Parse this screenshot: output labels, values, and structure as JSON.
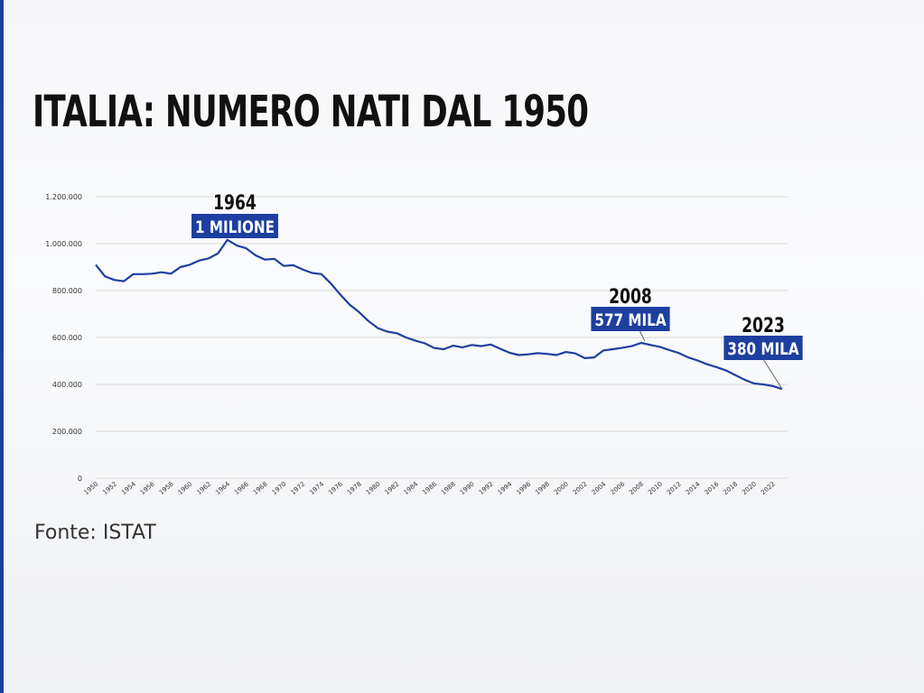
{
  "slide": {
    "title": "ITALIA: NUMERO NATI DAL 1950",
    "source": "Fonte: ISTAT"
  },
  "colors": {
    "line": "#1d3fa0",
    "label_box": "#1d3fa0",
    "accent_bar": "#1c3f9e"
  },
  "chart_data": {
    "type": "line",
    "title": "",
    "xlabel": "",
    "ylabel": "",
    "ylim": [
      0,
      1200000
    ],
    "grid": true,
    "y_ticks": [
      {
        "value": 0,
        "label": "0"
      },
      {
        "value": 200000,
        "label": "200.000"
      },
      {
        "value": 400000,
        "label": "400.000"
      },
      {
        "value": 600000,
        "label": "600.000"
      },
      {
        "value": 800000,
        "label": "800.000"
      },
      {
        "value": 1000000,
        "label": "1.000.000"
      },
      {
        "value": 1200000,
        "label": "1.200.000"
      }
    ],
    "x_tick_labels": [
      "1950",
      "1952",
      "1954",
      "1956",
      "1958",
      "1960",
      "1962",
      "1964",
      "1966",
      "1968",
      "1970",
      "1972",
      "1974",
      "1976",
      "1978",
      "1980",
      "1982",
      "1984",
      "1986",
      "1988",
      "1990",
      "1992",
      "1994",
      "1996",
      "1998",
      "2000",
      "2002",
      "2004",
      "2006",
      "2008",
      "2010",
      "2012",
      "2014",
      "2016",
      "2018",
      "2020",
      "2022"
    ],
    "series": [
      {
        "x": [
          1950,
          1951,
          1952,
          1953,
          1954,
          1955,
          1956,
          1957,
          1958,
          1959,
          1960,
          1961,
          1962,
          1963,
          1964,
          1965,
          1966,
          1967,
          1968,
          1969,
          1970,
          1971,
          1972,
          1973,
          1974,
          1975,
          1976,
          1977,
          1978,
          1979,
          1980,
          1981,
          1982,
          1983,
          1984,
          1985,
          1986,
          1987,
          1988,
          1989,
          1990,
          1991,
          1992,
          1993,
          1994,
          1995,
          1996,
          1997,
          1998,
          1999,
          2000,
          2001,
          2002,
          2003,
          2004,
          2005,
          2006,
          2007,
          2008,
          2009,
          2010,
          2011,
          2012,
          2013,
          2014,
          2015,
          2016,
          2017,
          2018,
          2019,
          2020,
          2021,
          2022,
          2023
        ],
        "values": [
          910000,
          860000,
          845000,
          840000,
          870000,
          870000,
          872000,
          878000,
          872000,
          900000,
          910000,
          928000,
          937000,
          958000,
          1016000,
          992000,
          980000,
          950000,
          932000,
          935000,
          905000,
          908000,
          890000,
          875000,
          870000,
          830000,
          783000,
          740000,
          708000,
          670000,
          640000,
          625000,
          618000,
          600000,
          586000,
          575000,
          555000,
          550000,
          565000,
          558000,
          568000,
          563000,
          570000,
          552000,
          535000,
          525000,
          528000,
          533000,
          530000,
          525000,
          538000,
          532000,
          512000,
          515000,
          545000,
          550000,
          556000,
          563000,
          577000,
          568000,
          560000,
          546000,
          534000,
          515000,
          502000,
          486000,
          474000,
          460000,
          440000,
          420000,
          404000,
          400000,
          393000,
          380000
        ]
      }
    ],
    "annotations": [
      {
        "year": 1964,
        "label": "1964",
        "value_label": "1 MILIONE"
      },
      {
        "year": 2008,
        "label": "2008",
        "value_label": "577 MILA"
      },
      {
        "year": 2023,
        "label": "2023",
        "value_label": "380 MILA"
      }
    ]
  }
}
